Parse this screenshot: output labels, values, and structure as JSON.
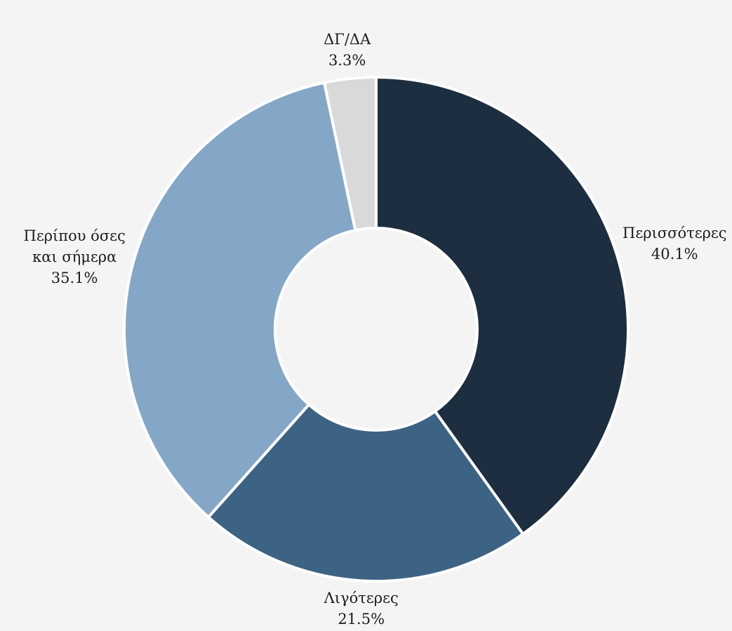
{
  "chart_data": {
    "type": "donut",
    "categories": [
      "Περισσότερες",
      "Λιγότερες",
      "Περίπου όσες\nκαι σήμερα",
      "ΔΓ/ΔΑ"
    ],
    "values": [
      40.1,
      21.5,
      35.1,
      3.3
    ],
    "value_labels": [
      "40.1%",
      "21.5%",
      "35.1%",
      "3.3%"
    ],
    "colors": [
      "#1c2e3f",
      "#3d6384",
      "#84a7c7",
      "#d9d9d9"
    ]
  }
}
